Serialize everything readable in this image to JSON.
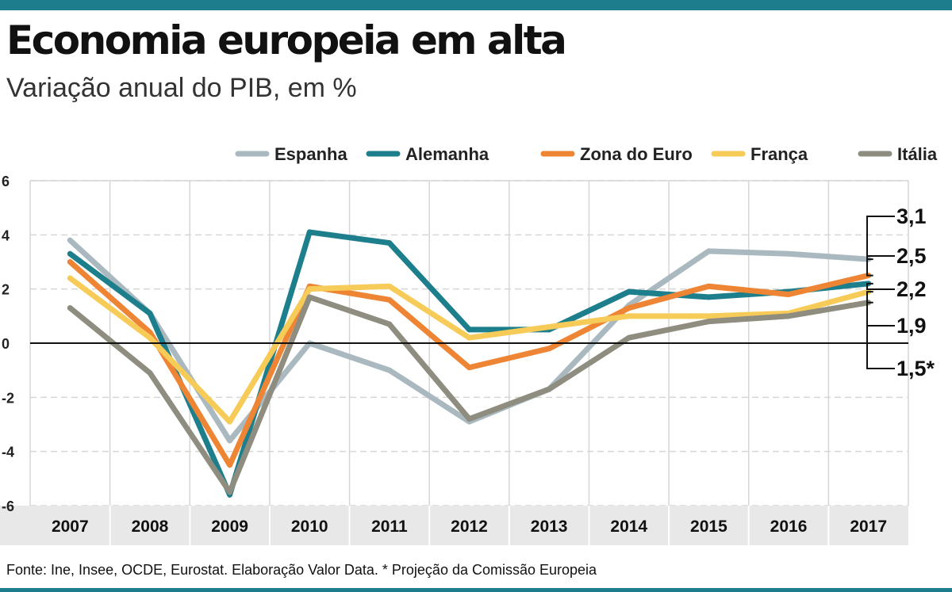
{
  "title": "Economia europeia em alta",
  "subtitle": "Variação anual do PIB, em %",
  "source": "Fonte: Ine, Insee, OCDE, Eurostat. Elaboração Valor Data. * Projeção da Comissão Europeia",
  "colors": {
    "accent_bar": "#1e7d8c",
    "zero_line": "#111111",
    "grid": "#d6d6d6",
    "axis_band": "#e8e8e8"
  },
  "chart_data": {
    "type": "line",
    "title": "Economia europeia em alta",
    "subtitle": "Variação anual do PIB, em %",
    "xlabel": "",
    "ylabel": "",
    "ylim": [
      -6,
      6
    ],
    "yticks": [
      "6",
      "4",
      "2",
      "0",
      "-2",
      "-4",
      "-6"
    ],
    "ytick_values": [
      6,
      4,
      2,
      0,
      -2,
      -4,
      -6
    ],
    "x": [
      "2007",
      "2008",
      "2009",
      "2010",
      "2011",
      "2012",
      "2013",
      "2014",
      "2015",
      "2016",
      "2017"
    ],
    "grid": true,
    "legend_position": "top-right",
    "series": [
      {
        "name": "Espanha",
        "color": "#a9b9bf",
        "values": [
          3.8,
          1.1,
          -3.6,
          0.0,
          -1.0,
          -2.9,
          -1.7,
          1.4,
          3.4,
          3.3,
          3.1
        ],
        "end_label": "3,1"
      },
      {
        "name": "Alemanha",
        "color": "#1d7f8c",
        "values": [
          3.3,
          1.1,
          -5.6,
          4.1,
          3.7,
          0.5,
          0.5,
          1.9,
          1.7,
          1.9,
          2.2
        ],
        "end_label": "2,2"
      },
      {
        "name": "Zona do Euro",
        "color": "#ee8534",
        "values": [
          3.0,
          0.4,
          -4.5,
          2.1,
          1.6,
          -0.9,
          -0.2,
          1.3,
          2.1,
          1.8,
          2.5
        ],
        "end_label": "2,5"
      },
      {
        "name": "França",
        "color": "#f6cb58",
        "values": [
          2.4,
          0.2,
          -2.9,
          2.0,
          2.1,
          0.2,
          0.6,
          1.0,
          1.0,
          1.1,
          1.9
        ],
        "end_label": "1,9"
      },
      {
        "name": "Itália",
        "color": "#8f8d80",
        "values": [
          1.3,
          -1.1,
          -5.5,
          1.7,
          0.7,
          -2.8,
          -1.7,
          0.2,
          0.8,
          1.0,
          1.5
        ],
        "end_label": "1,5*"
      }
    ]
  }
}
